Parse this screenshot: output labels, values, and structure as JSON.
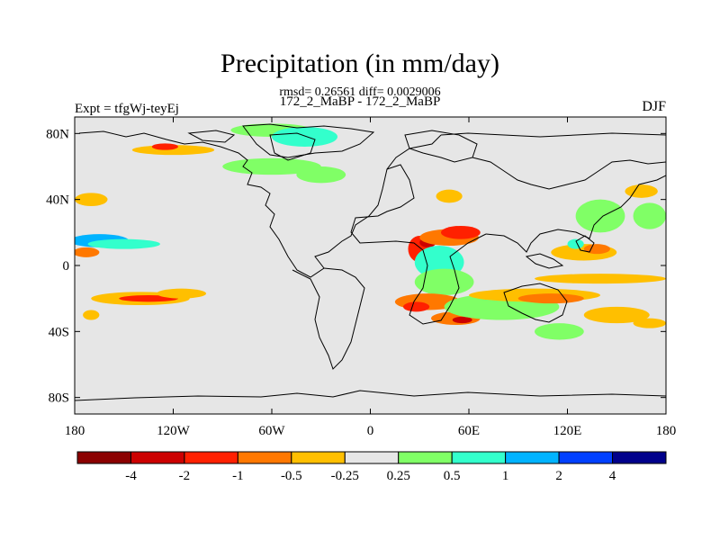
{
  "title": "Precipitation (in mm/day)",
  "stats": "rmsd= 0.26561 diff= 0.0029006",
  "subtitle": "172_2_MaBP - 172_2_MaBP",
  "experiment": "Expt = tfgWj-teyEj",
  "season": "DJF",
  "x_ticks": [
    {
      "lon": -180,
      "label": "180"
    },
    {
      "lon": -120,
      "label": "120W"
    },
    {
      "lon": -60,
      "label": "60W"
    },
    {
      "lon": 0,
      "label": "0"
    },
    {
      "lon": 60,
      "label": "60E"
    },
    {
      "lon": 120,
      "label": "120E"
    },
    {
      "lon": 180,
      "label": "180"
    }
  ],
  "y_ticks": [
    {
      "lat": 80,
      "label": "80N"
    },
    {
      "lat": 40,
      "label": "40N"
    },
    {
      "lat": 0,
      "label": "0"
    },
    {
      "lat": -40,
      "label": "40S"
    },
    {
      "lat": -80,
      "label": "80S"
    }
  ],
  "colorbar": {
    "colors": [
      "#8b0000",
      "#cc0000",
      "#ff2000",
      "#ff7800",
      "#ffbf00",
      "#e6e6e6",
      "#80ff66",
      "#33ffcc",
      "#00b3ff",
      "#0040ff",
      "#00008b"
    ],
    "labels": [
      "-4",
      "-2",
      "-1",
      "-0.5",
      "-0.25",
      "0.25",
      "0.5",
      "1",
      "2",
      "4"
    ]
  },
  "map_data": {
    "type": "filled-contour-map",
    "lon_range": [
      -180,
      180
    ],
    "lat_range": [
      -90,
      90
    ],
    "background_class": "-0.25 to 0.25",
    "anomalies": [
      {
        "lon": -165,
        "lat": 15,
        "rlon": 18,
        "rlat": 4,
        "level": 3
      },
      {
        "lon": -150,
        "lat": 13,
        "rlon": 22,
        "rlat": 3,
        "level": 2
      },
      {
        "lon": -173,
        "lat": 8,
        "rlon": 8,
        "rlat": 3,
        "level": -2
      },
      {
        "lon": -170,
        "lat": 40,
        "rlon": 10,
        "rlat": 4,
        "level": -1
      },
      {
        "lon": -120,
        "lat": 70,
        "rlon": 25,
        "rlat": 3,
        "level": -1
      },
      {
        "lon": -125,
        "lat": 72,
        "rlon": 8,
        "rlat": 2,
        "level": -3
      },
      {
        "lon": -140,
        "lat": -20,
        "rlon": 30,
        "rlat": 4,
        "level": -1
      },
      {
        "lon": -135,
        "lat": -20,
        "rlon": 18,
        "rlat": 2,
        "level": -3
      },
      {
        "lon": -115,
        "lat": -17,
        "rlon": 15,
        "rlat": 3,
        "level": -1
      },
      {
        "lon": -170,
        "lat": -30,
        "rlon": 5,
        "rlat": 3,
        "level": -1
      },
      {
        "lon": -60,
        "lat": 82,
        "rlon": 25,
        "rlat": 4,
        "level": 1
      },
      {
        "lon": -40,
        "lat": 78,
        "rlon": 20,
        "rlat": 6,
        "level": 2
      },
      {
        "lon": -60,
        "lat": 60,
        "rlon": 30,
        "rlat": 5,
        "level": 1
      },
      {
        "lon": -30,
        "lat": 55,
        "rlon": 15,
        "rlat": 5,
        "level": 1
      },
      {
        "lon": 30,
        "lat": 10,
        "rlon": 7,
        "rlat": 8,
        "level": -3
      },
      {
        "lon": 35,
        "lat": 14,
        "rlon": 5,
        "rlat": 3,
        "level": -4
      },
      {
        "lon": 48,
        "lat": 17,
        "rlon": 18,
        "rlat": 5,
        "level": -2
      },
      {
        "lon": 55,
        "lat": 20,
        "rlon": 12,
        "rlat": 4,
        "level": -3
      },
      {
        "lon": 48,
        "lat": 42,
        "rlon": 8,
        "rlat": 4,
        "level": -1
      },
      {
        "lon": 42,
        "lat": 2,
        "rlon": 15,
        "rlat": 10,
        "level": 2
      },
      {
        "lon": 45,
        "lat": -10,
        "rlon": 18,
        "rlat": 8,
        "level": 1
      },
      {
        "lon": 35,
        "lat": -22,
        "rlon": 20,
        "rlat": 5,
        "level": -2
      },
      {
        "lon": 28,
        "lat": -25,
        "rlon": 8,
        "rlat": 3,
        "level": -3
      },
      {
        "lon": 52,
        "lat": -32,
        "rlon": 15,
        "rlat": 4,
        "level": -2
      },
      {
        "lon": 56,
        "lat": -33,
        "rlon": 6,
        "rlat": 2,
        "level": -4
      },
      {
        "lon": 80,
        "lat": -25,
        "rlon": 35,
        "rlat": 8,
        "level": 1
      },
      {
        "lon": 100,
        "lat": -18,
        "rlon": 40,
        "rlat": 4,
        "level": -1
      },
      {
        "lon": 110,
        "lat": -20,
        "rlon": 20,
        "rlat": 3,
        "level": -2
      },
      {
        "lon": 140,
        "lat": -8,
        "rlon": 40,
        "rlat": 3,
        "level": -1
      },
      {
        "lon": 130,
        "lat": 8,
        "rlon": 20,
        "rlat": 5,
        "level": -1
      },
      {
        "lon": 138,
        "lat": 10,
        "rlon": 8,
        "rlat": 3,
        "level": -2
      },
      {
        "lon": 125,
        "lat": 13,
        "rlon": 5,
        "rlat": 3,
        "level": 2
      },
      {
        "lon": 140,
        "lat": 30,
        "rlon": 15,
        "rlat": 10,
        "level": 1
      },
      {
        "lon": 165,
        "lat": 45,
        "rlon": 10,
        "rlat": 4,
        "level": -1
      },
      {
        "lon": 170,
        "lat": 30,
        "rlon": 10,
        "rlat": 8,
        "level": 1
      },
      {
        "lon": 150,
        "lat": -30,
        "rlon": 20,
        "rlat": 5,
        "level": -1
      },
      {
        "lon": 115,
        "lat": -40,
        "rlon": 15,
        "rlat": 5,
        "level": 1
      },
      {
        "lon": 170,
        "lat": -35,
        "rlon": 10,
        "rlat": 3,
        "level": -1
      }
    ]
  }
}
